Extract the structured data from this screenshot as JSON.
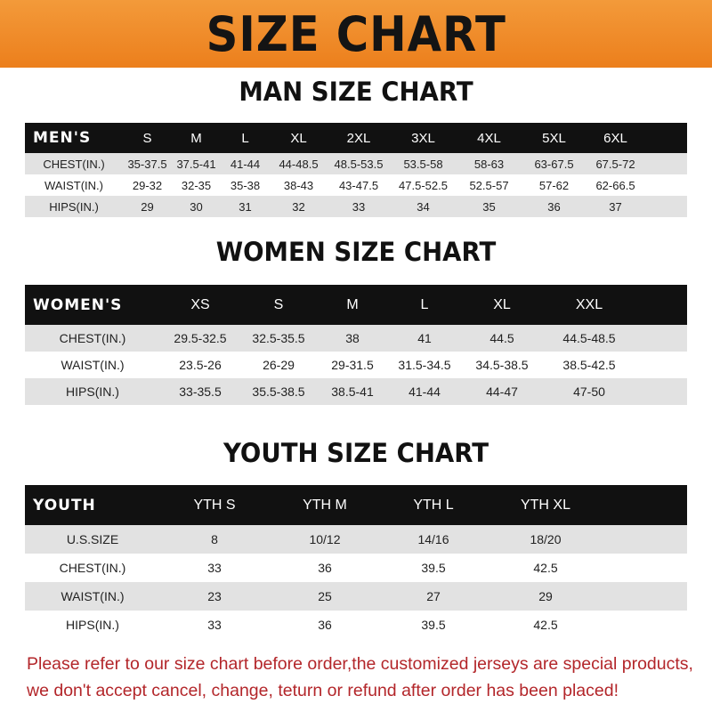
{
  "title": "SIZE CHART",
  "men": {
    "title": "MAN SIZE CHART",
    "header": [
      "MEN'S",
      "S",
      "M",
      "L",
      "XL",
      "2XL",
      "3XL",
      "4XL",
      "5XL",
      "6XL"
    ],
    "rows": [
      [
        "CHEST(IN.)",
        "35-37.5",
        "37.5-41",
        "41-44",
        "44-48.5",
        "48.5-53.5",
        "53.5-58",
        "58-63",
        "63-67.5",
        "67.5-72"
      ],
      [
        "WAIST(IN.)",
        "29-32",
        "32-35",
        "35-38",
        "38-43",
        "43-47.5",
        "47.5-52.5",
        "52.5-57",
        "57-62",
        "62-66.5"
      ],
      [
        "HIPS(IN.)",
        "29",
        "30",
        "31",
        "32",
        "33",
        "34",
        "35",
        "36",
        "37"
      ]
    ]
  },
  "women": {
    "title": "WOMEN SIZE CHART",
    "header": [
      "WOMEN'S",
      "XS",
      "S",
      "M",
      "L",
      "XL",
      "XXL"
    ],
    "rows": [
      [
        "CHEST(IN.)",
        "29.5-32.5",
        "32.5-35.5",
        "38",
        "41",
        "44.5",
        "44.5-48.5"
      ],
      [
        "WAIST(IN.)",
        "23.5-26",
        "26-29",
        "29-31.5",
        "31.5-34.5",
        "34.5-38.5",
        "38.5-42.5"
      ],
      [
        "HIPS(IN.)",
        "33-35.5",
        "35.5-38.5",
        "38.5-41",
        "41-44",
        "44-47",
        "47-50"
      ]
    ]
  },
  "youth": {
    "title": "YOUTH SIZE CHART",
    "header": [
      "YOUTH",
      "YTH S",
      "YTH M",
      "YTH L",
      "YTH XL"
    ],
    "rows": [
      [
        "U.S.SIZE",
        "8",
        "10/12",
        "14/16",
        "18/20"
      ],
      [
        "CHEST(IN.)",
        "33",
        "36",
        "39.5",
        "42.5"
      ],
      [
        "WAIST(IN.)",
        "23",
        "25",
        "27",
        "29"
      ],
      [
        "HIPS(IN.)",
        "33",
        "36",
        "39.5",
        "42.5"
      ]
    ]
  },
  "note": [
    "Please refer to our size chart before order,the customized jerseys are special products,",
    "we don't accept cancel, change, teturn or refund after order has been placed!"
  ],
  "colors": {
    "banner": "#ee8526",
    "header_row": "#111111",
    "stripe": "#e2e2e2",
    "note": "#b3262a"
  }
}
